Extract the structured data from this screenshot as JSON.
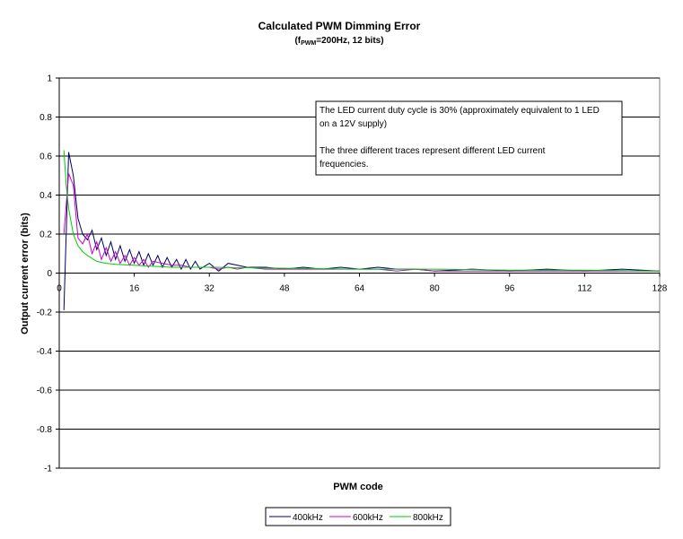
{
  "chart_data": {
    "type": "line",
    "title": "Calculated PWM Dimming Error",
    "subtitle": {
      "prefix": "(f",
      "subscript": "PWM",
      "suffix": "=200Hz, 12 bits)"
    },
    "xlabel": "PWM code",
    "ylabel": "Output current error (bits)",
    "xlim": [
      0,
      128
    ],
    "ylim": [
      -1,
      1
    ],
    "x_ticks": [
      0,
      16,
      32,
      48,
      64,
      80,
      96,
      112,
      128
    ],
    "y_ticks": [
      1,
      0.8,
      0.6,
      0.4,
      0.2,
      0,
      -0.2,
      -0.4,
      -0.6,
      -0.8,
      -1
    ],
    "grid": "horizontal",
    "legend_position": "bottom",
    "annotation_lines": [
      "The LED current duty cycle is 30% (approximately equivalent to 1 LED",
      "on a 12V supply)",
      "",
      "The three different traces represent different LED current",
      "frequencies."
    ],
    "series": [
      {
        "name": "400kHz",
        "color": "#000066",
        "x": [
          1,
          2,
          3,
          4,
          5,
          6,
          7,
          8,
          9,
          10,
          11,
          12,
          13,
          14,
          15,
          16,
          17,
          18,
          19,
          20,
          21,
          22,
          23,
          24,
          25,
          26,
          27,
          28,
          29,
          30,
          32,
          34,
          36,
          38,
          40,
          44,
          48,
          52,
          56,
          60,
          64,
          68,
          72,
          76,
          80,
          88,
          96,
          104,
          112,
          120,
          128
        ],
        "y": [
          -0.19,
          0.62,
          0.5,
          0.28,
          0.2,
          0.17,
          0.22,
          0.12,
          0.18,
          0.09,
          0.16,
          0.07,
          0.14,
          0.06,
          0.12,
          0.05,
          0.11,
          0.04,
          0.1,
          0.04,
          0.09,
          0.03,
          0.08,
          0.03,
          0.07,
          0.02,
          0.07,
          0.02,
          0.06,
          0.02,
          0.05,
          0.01,
          0.05,
          0.04,
          0.03,
          0.03,
          0.02,
          0.03,
          0.02,
          0.03,
          0.02,
          0.03,
          0.02,
          0.02,
          0.01,
          0.02,
          0.01,
          0.02,
          0.01,
          0.02,
          0.01
        ]
      },
      {
        "name": "600kHz",
        "color": "#cc00cc",
        "x": [
          1,
          2,
          3,
          4,
          5,
          6,
          7,
          8,
          9,
          10,
          11,
          12,
          13,
          14,
          15,
          16,
          17,
          18,
          19,
          20,
          22,
          24,
          26,
          28,
          30,
          32,
          34,
          36,
          38,
          40,
          44,
          48,
          52,
          56,
          60,
          64,
          68,
          72,
          76,
          80,
          88,
          96,
          104,
          112,
          120,
          128
        ],
        "y": [
          0.2,
          0.51,
          0.45,
          0.18,
          0.15,
          0.2,
          0.1,
          0.16,
          0.07,
          0.13,
          0.06,
          0.11,
          0.05,
          0.09,
          0.04,
          0.08,
          0.04,
          0.07,
          0.03,
          0.06,
          0.05,
          0.04,
          0.04,
          0.03,
          0.03,
          0.03,
          0.02,
          0.03,
          0.02,
          0.03,
          0.02,
          0.02,
          0.02,
          0.02,
          0.02,
          0.02,
          0.02,
          0.01,
          0.02,
          0.01,
          0.01,
          0.01,
          0.01,
          0.01,
          0.01,
          0.01
        ]
      },
      {
        "name": "800kHz",
        "color": "#00cc00",
        "x": [
          1,
          1.5,
          2,
          3,
          4,
          5,
          6,
          8,
          10,
          12,
          16,
          20,
          24,
          32,
          48,
          64,
          80,
          96,
          112,
          128
        ],
        "y": [
          0.63,
          0.45,
          0.33,
          0.2,
          0.14,
          0.11,
          0.09,
          0.06,
          0.05,
          0.045,
          0.04,
          0.035,
          0.03,
          0.03,
          0.025,
          0.02,
          0.02,
          0.015,
          0.015,
          0.01
        ]
      }
    ]
  }
}
